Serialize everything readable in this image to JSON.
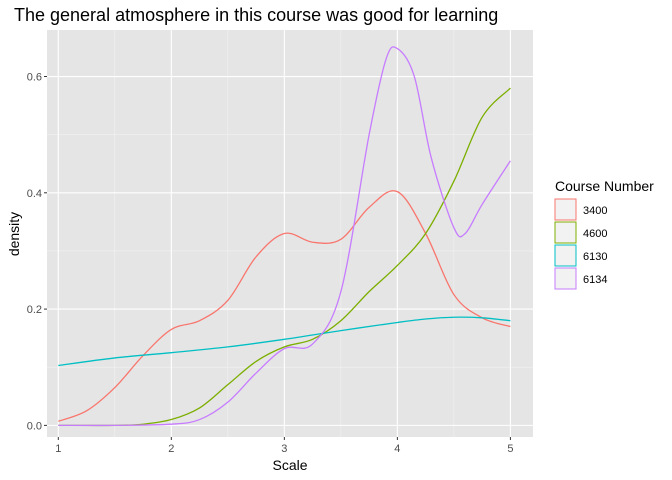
{
  "chart_data": {
    "type": "line",
    "title": "The general atmosphere in this course was good for learning",
    "xlabel": "Scale",
    "ylabel": "density",
    "xlim": [
      0.9,
      5.2
    ],
    "ylim": [
      -0.02,
      0.68
    ],
    "x_ticks": [
      1,
      2,
      3,
      4,
      5
    ],
    "y_ticks": [
      0.0,
      0.2,
      0.4,
      0.6
    ],
    "y_tick_labels": [
      "0.0",
      "0.2",
      "0.4",
      "0.6"
    ],
    "grid": true,
    "background": "#e5e5e5",
    "legend": {
      "title": "Course Number",
      "placement": "right"
    },
    "series": [
      {
        "name": "3400",
        "color": "#F8766D",
        "x": [
          1.0,
          1.25,
          1.5,
          1.75,
          2.0,
          2.25,
          2.5,
          2.75,
          3.0,
          3.25,
          3.5,
          3.75,
          4.0,
          4.25,
          4.5,
          4.75,
          5.0
        ],
        "y": [
          0.007,
          0.025,
          0.065,
          0.12,
          0.165,
          0.18,
          0.215,
          0.29,
          0.33,
          0.315,
          0.32,
          0.375,
          0.402,
          0.33,
          0.225,
          0.185,
          0.17
        ]
      },
      {
        "name": "4600",
        "color": "#7CAE00",
        "x": [
          1.0,
          1.25,
          1.5,
          1.75,
          2.0,
          2.25,
          2.5,
          2.75,
          3.0,
          3.25,
          3.5,
          3.75,
          4.0,
          4.25,
          4.5,
          4.75,
          5.0
        ],
        "y": [
          0.0,
          0.0,
          0.0,
          0.002,
          0.01,
          0.03,
          0.07,
          0.11,
          0.135,
          0.148,
          0.18,
          0.23,
          0.275,
          0.33,
          0.42,
          0.53,
          0.58
        ]
      },
      {
        "name": "6130",
        "color": "#00BFC4",
        "x": [
          1.0,
          1.5,
          2.0,
          2.5,
          3.0,
          3.5,
          4.0,
          4.25,
          4.5,
          4.75,
          5.0
        ],
        "y": [
          0.103,
          0.116,
          0.125,
          0.135,
          0.148,
          0.163,
          0.177,
          0.183,
          0.186,
          0.185,
          0.18
        ]
      },
      {
        "name": "6134",
        "color": "#C77CFF",
        "x": [
          1.0,
          1.5,
          2.0,
          2.25,
          2.5,
          2.75,
          3.0,
          3.25,
          3.5,
          3.75,
          3.9,
          4.0,
          4.15,
          4.3,
          4.5,
          4.6,
          4.75,
          5.0
        ],
        "y": [
          0.0,
          0.0,
          0.002,
          0.01,
          0.04,
          0.09,
          0.132,
          0.14,
          0.23,
          0.5,
          0.63,
          0.648,
          0.6,
          0.46,
          0.34,
          0.33,
          0.38,
          0.455
        ]
      }
    ]
  }
}
